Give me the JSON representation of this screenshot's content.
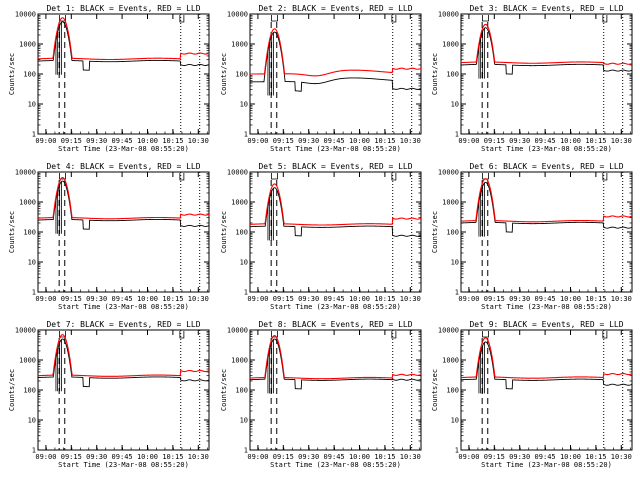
{
  "chart_data": [
    {
      "type": "line",
      "title": "Det 1: BLACK = Events, RED = LLD",
      "xlabel": "Start Time (23-Mar-08 08:55:20)",
      "ylabel": "Counts/sec",
      "profile": 0,
      "x_ticks": [
        "09:00",
        "09:15",
        "09:30",
        "09:45",
        "10:00",
        "10:15",
        "10:30"
      ],
      "y_ticks": [
        "1",
        "10",
        "100",
        "1000",
        "10000"
      ],
      "ylim": [
        1,
        10000
      ],
      "yscale": "log",
      "series": [
        {
          "color": "#000000",
          "baseline": 270,
          "peak": 5500,
          "tail": 200
        },
        {
          "color": "#ff0000",
          "baseline": 320,
          "peak": 7500,
          "tail": 480
        }
      ]
    },
    {
      "type": "line",
      "title": "Det 2: BLACK = Events, RED = LLD",
      "xlabel": "Start Time (23-Mar-08 08:55:20)",
      "ylabel": "Counts/sec",
      "profile": 1,
      "x_ticks": [
        "09:00",
        "09:15",
        "09:30",
        "09:45",
        "10:00",
        "10:15",
        "10:30"
      ],
      "y_ticks": [
        "1",
        "10",
        "100",
        "1000",
        "10000"
      ],
      "ylim": [
        1,
        10000
      ],
      "yscale": "log",
      "series": [
        {
          "color": "#000000",
          "baseline": 55,
          "peak": 2500,
          "tail": 32
        },
        {
          "color": "#ff0000",
          "baseline": 100,
          "peak": 3200,
          "tail": 150
        }
      ]
    },
    {
      "type": "line",
      "title": "Det 3: BLACK = Events, RED = LLD",
      "xlabel": "Start Time (23-Mar-08 08:55:20)",
      "ylabel": "Counts/sec",
      "profile": 0,
      "x_ticks": [
        "09:00",
        "09:15",
        "09:30",
        "09:45",
        "10:00",
        "10:15",
        "10:30"
      ],
      "y_ticks": [
        "1",
        "10",
        "100",
        "1000",
        "10000"
      ],
      "ylim": [
        1,
        10000
      ],
      "yscale": "log",
      "series": [
        {
          "color": "#000000",
          "baseline": 200,
          "peak": 3500,
          "tail": 130
        },
        {
          "color": "#ff0000",
          "baseline": 240,
          "peak": 4500,
          "tail": 220
        }
      ]
    },
    {
      "type": "line",
      "title": "Det 4: BLACK = Events, RED = LLD",
      "xlabel": "Start Time (23-Mar-08 08:55:20)",
      "ylabel": "Counts/sec",
      "profile": 0,
      "x_ticks": [
        "09:00",
        "09:15",
        "09:30",
        "09:45",
        "10:00",
        "10:15",
        "10:30"
      ],
      "y_ticks": [
        "1",
        "10",
        "100",
        "1000",
        "10000"
      ],
      "ylim": [
        1,
        10000
      ],
      "yscale": "log",
      "series": [
        {
          "color": "#000000",
          "baseline": 250,
          "peak": 5000,
          "tail": 160
        },
        {
          "color": "#ff0000",
          "baseline": 290,
          "peak": 6500,
          "tail": 380
        }
      ]
    },
    {
      "type": "line",
      "title": "Det 5: BLACK = Events, RED = LLD",
      "xlabel": "Start Time (23-Mar-08 08:55:20)",
      "ylabel": "Counts/sec",
      "profile": 0,
      "x_ticks": [
        "09:00",
        "09:15",
        "09:30",
        "09:45",
        "10:00",
        "10:15",
        "10:30"
      ],
      "y_ticks": [
        "1",
        "10",
        "100",
        "1000",
        "10000"
      ],
      "ylim": [
        1,
        10000
      ],
      "yscale": "log",
      "series": [
        {
          "color": "#000000",
          "baseline": 150,
          "peak": 3000,
          "tail": 75
        },
        {
          "color": "#ff0000",
          "baseline": 180,
          "peak": 4000,
          "tail": 280
        }
      ]
    },
    {
      "type": "line",
      "title": "Det 6: BLACK = Events, RED = LLD",
      "xlabel": "Start Time (23-Mar-08 08:55:20)",
      "ylabel": "Counts/sec",
      "profile": 0,
      "x_ticks": [
        "09:00",
        "09:15",
        "09:30",
        "09:45",
        "10:00",
        "10:15",
        "10:30"
      ],
      "y_ticks": [
        "1",
        "10",
        "100",
        "1000",
        "10000"
      ],
      "ylim": [
        1,
        10000
      ],
      "yscale": "log",
      "series": [
        {
          "color": "#000000",
          "baseline": 200,
          "peak": 4500,
          "tail": 140
        },
        {
          "color": "#ff0000",
          "baseline": 230,
          "peak": 6000,
          "tail": 330
        }
      ]
    },
    {
      "type": "line",
      "title": "Det 7: BLACK = Events, RED = LLD",
      "xlabel": "Start Time (23-Mar-08 08:55:20)",
      "ylabel": "Counts/sec",
      "profile": 0,
      "x_ticks": [
        "09:00",
        "09:15",
        "09:30",
        "09:45",
        "10:00",
        "10:15",
        "10:30"
      ],
      "y_ticks": [
        "1",
        "10",
        "100",
        "1000",
        "10000"
      ],
      "ylim": [
        1,
        10000
      ],
      "yscale": "log",
      "series": [
        {
          "color": "#000000",
          "baseline": 260,
          "peak": 5000,
          "tail": 210
        },
        {
          "color": "#ff0000",
          "baseline": 300,
          "peak": 7000,
          "tail": 430
        }
      ]
    },
    {
      "type": "line",
      "title": "Det 8: BLACK = Events, RED = LLD",
      "xlabel": "Start Time (23-Mar-08 08:55:20)",
      "ylabel": "Counts/sec",
      "profile": 0,
      "x_ticks": [
        "09:00",
        "09:15",
        "09:30",
        "09:45",
        "10:00",
        "10:15",
        "10:30"
      ],
      "y_ticks": [
        "1",
        "10",
        "100",
        "1000",
        "10000"
      ],
      "ylim": [
        1,
        10000
      ],
      "yscale": "log",
      "series": [
        {
          "color": "#000000",
          "baseline": 220,
          "peak": 5000,
          "tail": 220
        },
        {
          "color": "#ff0000",
          "baseline": 250,
          "peak": 6500,
          "tail": 320
        }
      ]
    },
    {
      "type": "line",
      "title": "Det 9: BLACK = Events, RED = LLD",
      "xlabel": "Start Time (23-Mar-08 08:55:20)",
      "ylabel": "Counts/sec",
      "profile": 0,
      "x_ticks": [
        "09:00",
        "09:15",
        "09:30",
        "09:45",
        "10:00",
        "10:15",
        "10:30"
      ],
      "y_ticks": [
        "1",
        "10",
        "100",
        "1000",
        "10000"
      ],
      "ylim": [
        1,
        10000
      ],
      "yscale": "log",
      "series": [
        {
          "color": "#000000",
          "baseline": 220,
          "peak": 4000,
          "tail": 150
        },
        {
          "color": "#ff0000",
          "baseline": 260,
          "peak": 5500,
          "tail": 340
        }
      ]
    }
  ]
}
